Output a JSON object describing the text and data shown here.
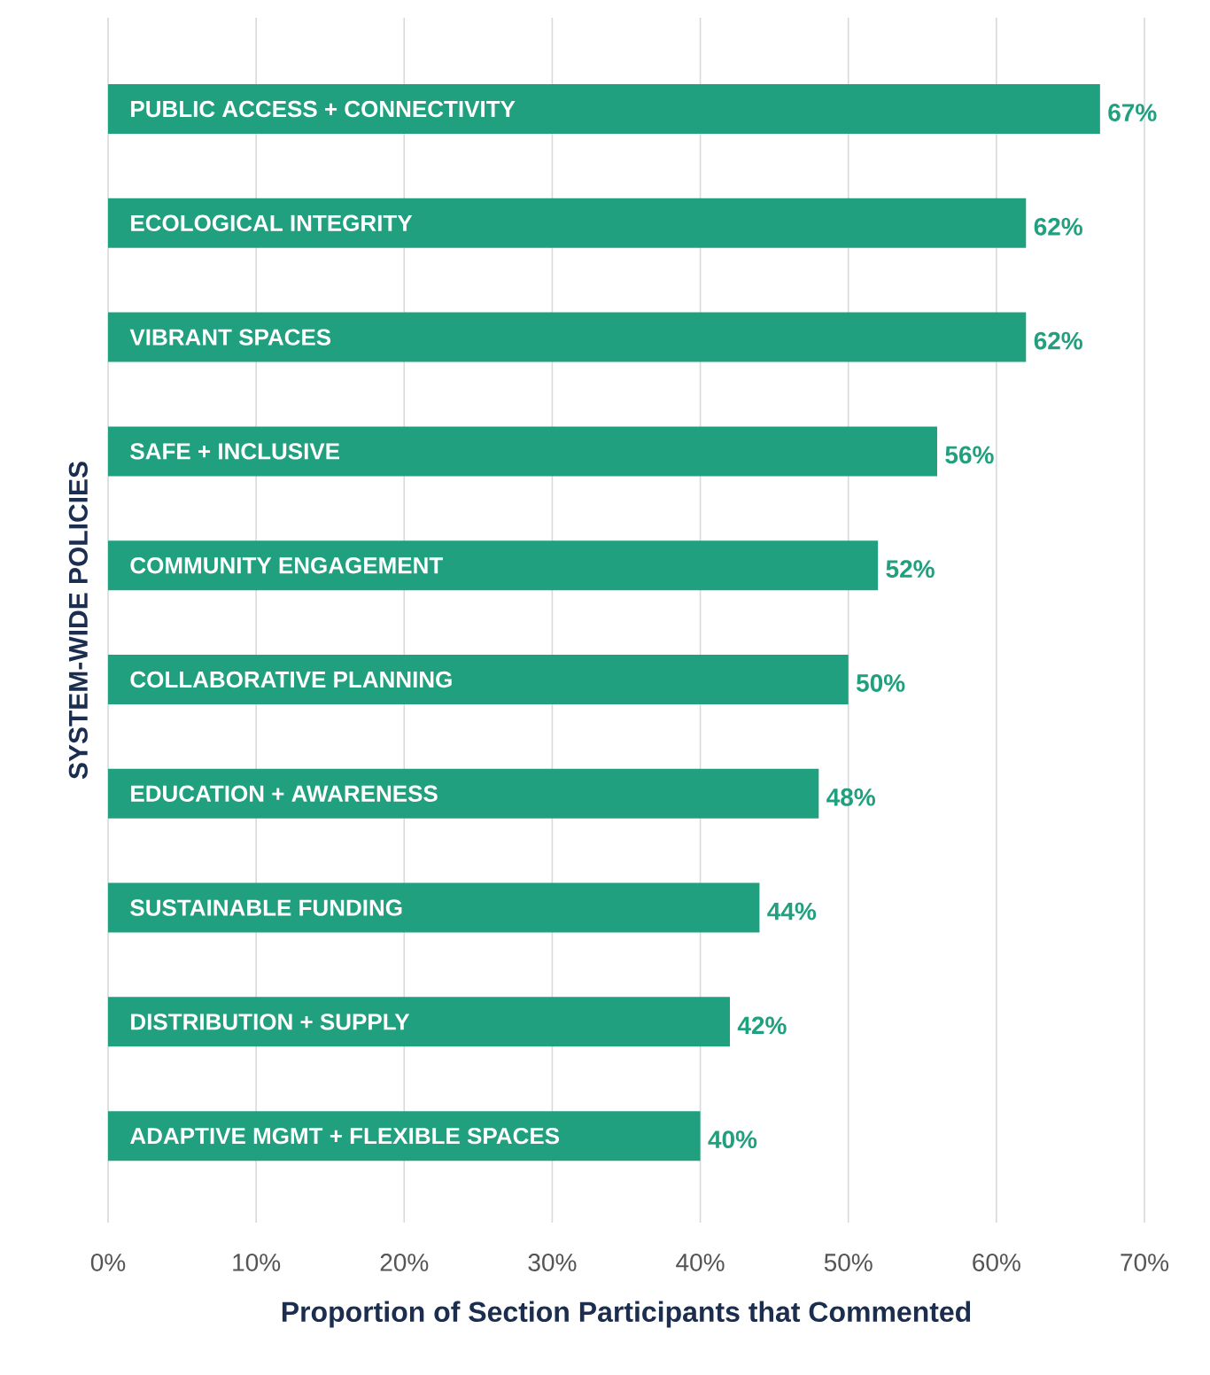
{
  "chart_data": {
    "type": "bar",
    "orientation": "horizontal",
    "categories": [
      "PUBLIC ACCESS + CONNECTIVITY",
      "ECOLOGICAL INTEGRITY",
      "VIBRANT SPACES",
      "SAFE + INCLUSIVE",
      "COMMUNITY ENGAGEMENT",
      "COLLABORATIVE PLANNING",
      "EDUCATION + AWARENESS",
      "SUSTAINABLE FUNDING",
      "DISTRIBUTION + SUPPLY",
      "ADAPTIVE MGMT + FLEXIBLE SPACES"
    ],
    "values": [
      67,
      62,
      62,
      56,
      52,
      50,
      48,
      44,
      42,
      40
    ],
    "value_labels": [
      "67%",
      "62%",
      "62%",
      "56%",
      "52%",
      "50%",
      "48%",
      "44%",
      "42%",
      "40%"
    ],
    "color": "#21a07f",
    "xlim": [
      0,
      70
    ],
    "xticks": [
      {
        "value": 0,
        "label": "0%"
      },
      {
        "value": 10,
        "label": "10%"
      },
      {
        "value": 20,
        "label": "20%"
      },
      {
        "value": 30,
        "label": "30%"
      },
      {
        "value": 40,
        "label": "40%"
      },
      {
        "value": 50,
        "label": "50%"
      },
      {
        "value": 60,
        "label": "60%"
      },
      {
        "value": 70,
        "label": "70%"
      }
    ],
    "xlabel": "Proportion of Section Participants that Commented",
    "ylabel": "SYSTEM-WIDE POLICIES",
    "grid": "x"
  }
}
